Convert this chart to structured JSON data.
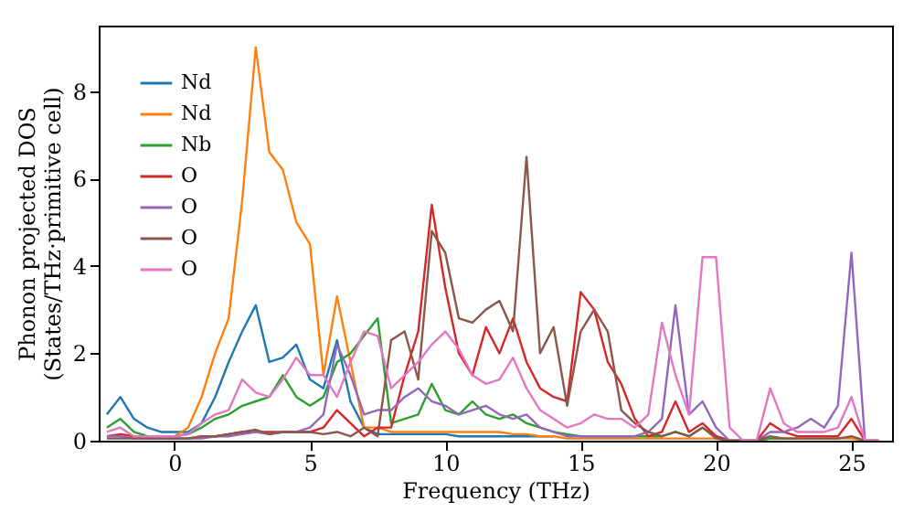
{
  "chart_data": {
    "type": "line",
    "xlabel": "Frequency (THz)",
    "ylabel": "Phonon projected DOS\n(States/THz·primitive cell)",
    "x": [
      -2.5,
      -2,
      -1.5,
      -1,
      -0.5,
      0,
      0.5,
      1,
      1.5,
      2,
      2.5,
      3,
      3.5,
      4,
      4.5,
      5,
      5.5,
      6,
      6.5,
      7,
      7.5,
      8,
      8.5,
      9,
      9.5,
      10,
      10.5,
      11,
      11.5,
      12,
      12.5,
      13,
      13.5,
      14,
      14.5,
      15,
      15.5,
      16,
      16.5,
      17,
      17.5,
      18,
      18.5,
      19,
      19.5,
      20,
      20.5,
      21,
      21.5,
      22,
      22.5,
      23,
      23.5,
      24,
      24.5,
      25,
      25.5,
      26
    ],
    "series": [
      {
        "name": "Nd",
        "color": "#1f77b4",
        "values": [
          0.6,
          1.0,
          0.5,
          0.3,
          0.2,
          0.2,
          0.2,
          0.4,
          1.0,
          1.8,
          2.5,
          3.1,
          1.8,
          1.9,
          2.2,
          1.4,
          1.2,
          2.3,
          0.9,
          0.3,
          0.15,
          0.15,
          0.15,
          0.15,
          0.15,
          0.15,
          0.1,
          0.1,
          0.1,
          0.1,
          0.1,
          0.1,
          0.1,
          0.1,
          null,
          null,
          null,
          null,
          null,
          null,
          null,
          null,
          null,
          null,
          null,
          null,
          null,
          null,
          null,
          null,
          null,
          null,
          null,
          null,
          null,
          null,
          null,
          null
        ]
      },
      {
        "name": "Nd",
        "color": "#ff7f0e",
        "values": [
          null,
          null,
          null,
          0.1,
          0.1,
          0.1,
          0.3,
          1.0,
          2.0,
          2.8,
          5.5,
          9.0,
          6.6,
          6.2,
          5.0,
          4.5,
          1.5,
          3.3,
          1.8,
          0.3,
          0.3,
          0.2,
          0.2,
          0.2,
          0.2,
          0.2,
          0.2,
          0.2,
          0.2,
          0.2,
          0.15,
          0.15,
          0.1,
          0.1,
          0.05,
          0.05,
          0.05,
          0.05,
          0.05,
          0.05,
          0.05,
          0.05,
          0.05,
          0.05,
          0.05,
          0.05,
          0,
          0,
          0,
          0.05,
          0.05,
          0.05,
          0.05,
          0.05,
          0.05,
          0.05,
          0,
          0
        ]
      },
      {
        "name": "Nb",
        "color": "#2ca02c",
        "values": [
          0.3,
          0.5,
          0.2,
          0.1,
          0.1,
          0.1,
          0.15,
          0.3,
          0.5,
          0.6,
          0.8,
          0.9,
          1.0,
          1.5,
          1.0,
          0.8,
          1.0,
          1.8,
          2.0,
          2.4,
          2.8,
          0.4,
          0.5,
          0.6,
          1.3,
          0.7,
          0.6,
          0.9,
          0.6,
          0.5,
          0.6,
          0.4,
          0.3,
          0.2,
          0.15,
          0.1,
          0.1,
          0.1,
          0.1,
          0.1,
          0.1,
          0.1,
          0.2,
          0.1,
          0.3,
          0.1,
          0,
          0,
          0,
          0.05,
          0.05,
          0.05,
          null,
          null,
          null,
          null,
          null,
          null
        ]
      },
      {
        "name": "O",
        "color": "#d62728",
        "values": [
          0.1,
          0.15,
          0.1,
          0.05,
          0.05,
          0.05,
          0.05,
          0.1,
          0.1,
          0.15,
          0.2,
          0.2,
          0.2,
          0.2,
          0.2,
          0.2,
          0.3,
          0.7,
          0.4,
          0.1,
          0.3,
          0.3,
          1.5,
          2.5,
          5.4,
          3.5,
          2.0,
          1.5,
          2.6,
          2.0,
          2.8,
          1.8,
          1.2,
          1.0,
          0.9,
          3.4,
          3.0,
          1.8,
          1.3,
          0.5,
          0.1,
          0.2,
          0.9,
          0.2,
          0.4,
          0.1,
          0,
          0,
          0,
          0.4,
          0.2,
          0.1,
          0.1,
          0.1,
          0.1,
          0.5,
          0,
          0
        ]
      },
      {
        "name": "O",
        "color": "#9467bd",
        "values": [
          0.1,
          0.1,
          0.05,
          0.05,
          0.05,
          0.05,
          0.05,
          0.05,
          0.1,
          0.1,
          0.15,
          0.2,
          0.15,
          0.2,
          0.2,
          0.3,
          0.6,
          2.2,
          1.5,
          0.6,
          0.7,
          0.7,
          1.0,
          1.2,
          0.9,
          0.8,
          0.6,
          0.7,
          0.8,
          0.6,
          0.5,
          0.6,
          0.3,
          0.2,
          0.1,
          0.1,
          0.1,
          0.1,
          0.1,
          0.1,
          0.2,
          0.5,
          3.1,
          0.6,
          0.9,
          0.3,
          0,
          0,
          0,
          0.2,
          0.2,
          0.3,
          0.5,
          0.3,
          0.8,
          4.3,
          0,
          0
        ]
      },
      {
        "name": "O",
        "color": "#8c564b",
        "values": [
          0.05,
          0.05,
          0.05,
          0.05,
          0.05,
          0.05,
          0.05,
          0.1,
          0.1,
          0.15,
          0.2,
          0.25,
          0.15,
          0.2,
          0.2,
          0.2,
          0.15,
          0.2,
          0.1,
          0.3,
          0.1,
          2.3,
          2.5,
          1.4,
          4.8,
          4.3,
          2.8,
          2.7,
          3.0,
          3.2,
          2.5,
          6.5,
          2.0,
          2.6,
          0.8,
          2.5,
          3.0,
          2.5,
          0.7,
          0.4,
          0.2,
          0.1,
          0.2,
          0.1,
          0.3,
          0.05,
          0,
          0,
          0,
          0.1,
          0.05,
          0.05,
          0.05,
          0.05,
          0.05,
          0.1,
          0,
          0
        ]
      },
      {
        "name": "O",
        "color": "#e377c2",
        "values": [
          0.2,
          0.3,
          0.1,
          0.1,
          0.1,
          0.1,
          0.15,
          0.4,
          0.6,
          0.7,
          1.4,
          1.1,
          1.0,
          1.4,
          1.9,
          1.5,
          1.5,
          1.0,
          1.8,
          2.5,
          2.4,
          1.2,
          1.5,
          1.8,
          2.2,
          2.5,
          2.1,
          1.5,
          1.3,
          1.4,
          1.9,
          1.2,
          0.7,
          0.5,
          0.3,
          0.4,
          0.6,
          0.5,
          0.5,
          0.3,
          0.6,
          2.7,
          1.5,
          0.6,
          4.2,
          4.2,
          0.3,
          0,
          0,
          1.2,
          0.4,
          0.2,
          0.2,
          0.2,
          0.3,
          1.0,
          0,
          0
        ]
      }
    ],
    "xlim": [
      -2.8,
      26.5
    ],
    "ylim": [
      0,
      9.5
    ],
    "xticks": [
      0,
      5,
      10,
      15,
      20,
      25
    ],
    "yticks": [
      0,
      2,
      4,
      6,
      8
    ],
    "grid": false,
    "legend": "top left",
    "line_style": "solid"
  }
}
